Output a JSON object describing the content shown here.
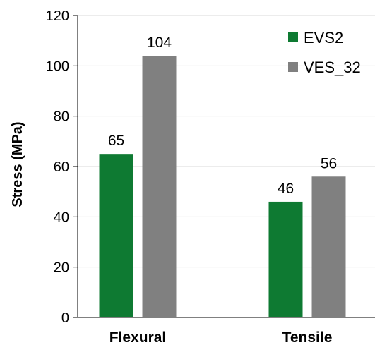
{
  "chart_data": {
    "type": "bar",
    "categories": [
      "Flexural",
      "Tensile"
    ],
    "series": [
      {
        "name": "EVS2",
        "values": [
          65,
          46
        ],
        "color": "#0e7a32"
      },
      {
        "name": "VES_32",
        "values": [
          104,
          56
        ],
        "color": "#808080"
      }
    ],
    "data_labels": [
      [
        "65",
        "46"
      ],
      [
        "104",
        "56"
      ]
    ],
    "title": "",
    "xlabel": "",
    "ylabel": "Stress (MPa)",
    "ylim": [
      0,
      120
    ],
    "yticks": [
      0,
      20,
      40,
      60,
      80,
      100,
      120
    ],
    "ytick_labels": [
      "0",
      "20",
      "40",
      "60",
      "80",
      "100",
      "120"
    ],
    "grid": true,
    "grid_color": "#d9d9d9",
    "legend": {
      "position": "top-right",
      "entries": [
        "EVS2",
        "VES_32"
      ]
    }
  }
}
